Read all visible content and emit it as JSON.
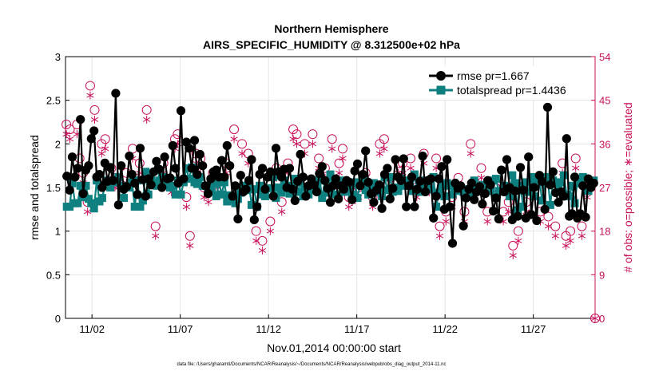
{
  "chart_data": {
    "type": "line",
    "title": "Northern Hemisphere",
    "subtitle": "AIRS_SPECIFIC_HUMIDITY @ 8.312500e+02 hPa",
    "xlabel": "Nov.01,2014 00:00:00 start",
    "ylabel": "rmse and totalspread",
    "y2label": "# of obs: o=possible; ∗=evaluated",
    "footer": "data file: /Users/gharamti/Documents/NCAR/Reanalysis/~/Documents/NCAR/Reanalysis/webpub/obs_diag_output_2014-11.nc",
    "xlim": [
      0.5,
      30.5
    ],
    "ylim": [
      0,
      3
    ],
    "y2lim": [
      0,
      54
    ],
    "x_ticks": [
      2,
      7,
      12,
      17,
      22,
      27
    ],
    "x_tick_labels": [
      "11/02",
      "11/07",
      "11/12",
      "11/17",
      "11/22",
      "11/27"
    ],
    "y_ticks": [
      "0",
      "0.5",
      "1",
      "1.5",
      "2",
      "2.5",
      "3"
    ],
    "y2_ticks": [
      "0",
      "9",
      "18",
      "27",
      "36",
      "45",
      "54"
    ],
    "grid": true,
    "legend_position": "top-right",
    "colors": {
      "rmse": "#000000",
      "spread": "#0e8080",
      "obs": "#c8105a"
    },
    "series": [
      {
        "name": "rmse pr=1.667",
        "marker": "filled-circle",
        "values": [
          1.63,
          1.47,
          1.85,
          1.62,
          1.72,
          2.28,
          1.43,
          1.7,
          1.75,
          2.06,
          2.15,
          1.62,
          1.65,
          1.5,
          1.78,
          1.57,
          1.73,
          1.58,
          2.58,
          1.3,
          1.75,
          1.48,
          1.51,
          1.86,
          1.65,
          1.55,
          1.42,
          1.95,
          1.59,
          1.4,
          1.6,
          1.53,
          1.68,
          1.8,
          1.71,
          1.5,
          1.85,
          1.6,
          1.61,
          1.98,
          1.72,
          1.55,
          2.38,
          1.6,
          2.02,
          1.95,
          1.72,
          2.04,
          1.65,
          1.88,
          1.75,
          1.52,
          1.43,
          1.6,
          1.68,
          1.7,
          1.62,
          1.81,
          1.62,
          1.98,
          1.75,
          1.4,
          1.52,
          1.14,
          1.64,
          1.45,
          1.48,
          1.58,
          1.82,
          1.13,
          1.28,
          1.65,
          1.72,
          1.48,
          1.62,
          1.68,
          1.4,
          1.95,
          1.68,
          1.62,
          1.71,
          1.5,
          1.72,
          1.48,
          1.35,
          1.57,
          1.88,
          1.62,
          1.4,
          1.52,
          1.6,
          1.53,
          1.45,
          1.66,
          1.74,
          1.58,
          1.49,
          1.33,
          1.52,
          1.6,
          1.37,
          1.52,
          1.48,
          1.58,
          1.56,
          1.36,
          1.69,
          1.77,
          1.52,
          1.65,
          1.92,
          1.56,
          1.43,
          1.33,
          1.47,
          1.53,
          1.26,
          1.65,
          1.72,
          1.37,
          1.49,
          1.82,
          1.62,
          1.58,
          1.83,
          1.28,
          1.52,
          1.62,
          1.28,
          1.48,
          1.57,
          1.86,
          1.45,
          1.58,
          1.6,
          1.15,
          1.4,
          1.6,
          1.74,
          1.25,
          1.82,
          1.28,
          0.86,
          1.55,
          1.49,
          1.52,
          1.06,
          1.38,
          1.48,
          1.55,
          1.36,
          1.45,
          1.51,
          1.31,
          1.43,
          1.58,
          1.53,
          1.23,
          1.38,
          1.14,
          1.7,
          1.45,
          1.82,
          1.5,
          1.13,
          1.46,
          1.17,
          1.73,
          1.47,
          1.15,
          1.85,
          1.19,
          1.5,
          1.12,
          1.64,
          1.57,
          1.25,
          2.42,
          1.53,
          1.68,
          1.44,
          1.33,
          1.45,
          1.4,
          2.06,
          1.17,
          1.2,
          1.62,
          1.15,
          1.2,
          1.52,
          1.16,
          1.6,
          1.5,
          1.55
        ]
      },
      {
        "name": "totalspread pr=1.4436",
        "marker": "filled-square",
        "values": [
          1.28,
          1.28,
          1.55,
          1.32,
          1.32,
          1.52,
          1.39,
          1.52,
          1.37,
          1.32,
          1.26,
          1.58,
          1.34,
          1.38,
          1.52,
          1.58,
          1.5,
          1.56,
          1.57,
          1.62,
          1.52,
          1.38,
          1.5,
          1.5,
          1.56,
          1.28,
          1.58,
          1.28,
          1.35,
          1.68,
          1.42,
          1.62,
          1.55,
          1.52,
          1.58,
          1.62,
          1.6,
          1.54,
          1.5,
          1.52,
          1.42,
          1.58,
          1.42,
          1.56,
          1.72,
          1.6,
          1.73,
          1.56,
          1.54,
          1.62,
          1.52,
          1.52,
          1.48,
          1.48,
          1.54,
          1.4,
          1.56,
          1.42,
          1.56,
          1.34,
          1.41,
          1.36,
          1.32,
          1.37,
          1.44,
          1.52,
          1.47,
          1.56,
          1.3,
          1.48,
          1.28,
          1.52,
          1.42,
          1.4,
          1.49,
          1.49,
          1.62,
          1.38,
          1.5,
          1.44,
          1.58,
          1.5,
          1.43,
          1.52,
          1.6,
          1.45,
          1.56,
          1.4,
          1.5,
          1.42,
          1.48,
          1.55,
          1.52,
          1.62,
          1.38,
          1.58,
          1.44,
          1.65,
          1.42,
          1.56,
          1.4,
          1.58,
          1.45,
          1.51,
          1.5,
          1.42,
          1.56,
          1.38,
          1.54,
          1.6,
          1.47,
          1.42,
          1.47,
          1.55,
          1.5,
          1.45,
          1.4,
          1.62,
          1.47,
          1.62,
          1.45,
          1.5,
          1.46,
          1.6,
          1.52,
          1.58,
          1.57,
          1.46,
          1.65,
          1.48,
          1.45,
          1.58,
          1.52,
          1.54,
          1.48,
          1.62,
          1.28,
          1.44,
          1.52,
          1.4,
          1.55,
          1.52,
          1.42,
          1.46,
          1.51,
          1.47,
          1.45,
          1.4,
          1.48,
          1.4,
          1.58,
          1.5,
          1.48,
          1.53,
          1.44,
          1.5,
          1.46,
          1.58,
          1.6,
          1.46,
          1.45,
          1.52,
          1.48,
          1.4,
          1.64,
          1.55,
          1.24,
          1.52,
          1.28,
          1.56,
          1.45,
          1.62,
          1.4,
          1.58,
          1.58,
          1.35,
          1.56,
          1.62,
          1.3,
          1.58,
          1.55,
          1.48,
          1.56,
          1.64,
          1.42,
          1.4,
          1.52,
          1.32,
          1.58,
          1.55,
          1.62,
          1.48,
          1.46,
          1.52,
          1.58
        ]
      }
    ],
    "obs": {
      "x": [
        0.55,
        0.75,
        1.15,
        1.3,
        1.5,
        1.75,
        1.9,
        2.15,
        2.55,
        2.75,
        3.1,
        3.3,
        3.5,
        3.95,
        4.3,
        4.7,
        5.1,
        5.6,
        6.05,
        6.5,
        6.7,
        6.85,
        7.35,
        7.55,
        7.9,
        8.15,
        8.35,
        8.6,
        8.85,
        9.15,
        9.6,
        10.05,
        10.5,
        10.85,
        11.3,
        11.65,
        12.1,
        12.45,
        12.75,
        13.1,
        13.4,
        13.6,
        14.05,
        14.5,
        14.85,
        15.2,
        15.6,
        16.0,
        16.2,
        16.55,
        16.75,
        17.1,
        17.5,
        17.9,
        18.3,
        18.55,
        18.9,
        19.35,
        19.6,
        20.05,
        20.4,
        20.8,
        21.1,
        21.5,
        21.7,
        22.05,
        22.4,
        22.75,
        23.1,
        23.45,
        23.7,
        24.05,
        24.4,
        24.85,
        25.3,
        25.6,
        25.85,
        26.15,
        26.6,
        27.0,
        27.4,
        27.85,
        28.25,
        28.65,
        28.85,
        29.1,
        29.4,
        29.75,
        30.05,
        30.5
      ],
      "possible": [
        40,
        39,
        40,
        33,
        30,
        24,
        48,
        43,
        36,
        37,
        31,
        29,
        29,
        30,
        35,
        32,
        43,
        19,
        32,
        28,
        37,
        38,
        25,
        17,
        34,
        33,
        27,
        26,
        30,
        29,
        32,
        39,
        36,
        34,
        18,
        16,
        20,
        31,
        24,
        32,
        39,
        38,
        36,
        38,
        33,
        31,
        37,
        32,
        35,
        25,
        26,
        27,
        30,
        25,
        36,
        37,
        29,
        32,
        32,
        33,
        27,
        34,
        28,
        33,
        19,
        22,
        25,
        29,
        22,
        36,
        28,
        31,
        22,
        27,
        22,
        24,
        15,
        18,
        24,
        27,
        22,
        21,
        19,
        32,
        17,
        18,
        33,
        19,
        27,
        0
      ],
      "evaluated": [
        38,
        37,
        38,
        31,
        28,
        22,
        46,
        41,
        34,
        35,
        29,
        27,
        27,
        28,
        33,
        30,
        41,
        17,
        30,
        26,
        35,
        36,
        23,
        15,
        32,
        31,
        25,
        24,
        28,
        27,
        30,
        37,
        34,
        32,
        16,
        14,
        18,
        29,
        22,
        30,
        37,
        36,
        34,
        36,
        31,
        29,
        35,
        30,
        33,
        23,
        24,
        25,
        28,
        23,
        34,
        35,
        27,
        30,
        30,
        31,
        25,
        32,
        26,
        31,
        17,
        20,
        23,
        27,
        20,
        34,
        26,
        29,
        20,
        25,
        20,
        22,
        13,
        16,
        22,
        25,
        20,
        19,
        17,
        30,
        15,
        16,
        31,
        17,
        25,
        0
      ]
    }
  }
}
